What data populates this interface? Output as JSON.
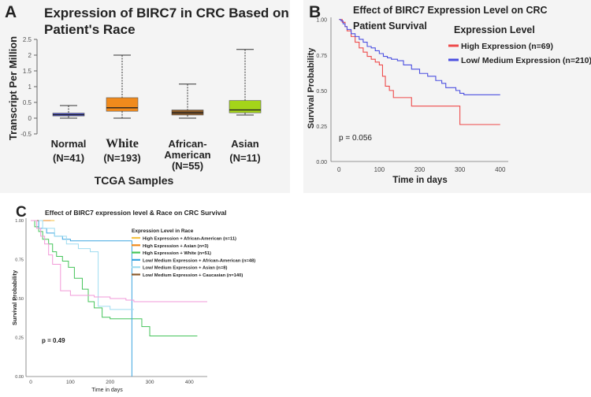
{
  "panel_labels": {
    "a": "A",
    "b": "B",
    "c": "C"
  },
  "colors": {
    "normal": "#4f54d9",
    "white": "#f08a1c",
    "african_american": "#8a5a28",
    "asian": "#a4d41a",
    "high": "#ee4b4b",
    "low": "#4b4fe0",
    "c_high_aa": "#f5c242",
    "c_high_asian": "#f08a1c",
    "c_high_white": "#45c45a",
    "c_low_aa": "#3da5e0",
    "c_low_asian": "#9fdcf0",
    "c_low_caucasian": "#8b5a2b",
    "c_pink": "#f29ad8"
  },
  "chart_data": [
    {
      "id": "A",
      "type": "box",
      "title_line1": "Expression of BIRC7 in CRC Based on",
      "title_line2": "Patient's Race",
      "ylabel": "Transcript Per Million",
      "xlabel": "TCGA Samples",
      "ylim": [
        -0.5,
        2.5
      ],
      "yticks": [
        "2.5",
        "2",
        "1.5",
        "1",
        "0.5",
        "0",
        "-0.5"
      ],
      "ytick_values": [
        2.5,
        2,
        1.5,
        1,
        0.5,
        0,
        -0.5
      ],
      "groups": [
        {
          "name_lines": [
            "Normal",
            "(N=41)"
          ],
          "min": 0.0,
          "q1": 0.07,
          "median": 0.11,
          "q3": 0.16,
          "max": 0.4,
          "color_key": "normal"
        },
        {
          "name_lines": [
            "White",
            "(N=193)"
          ],
          "min": 0.0,
          "q1": 0.22,
          "median": 0.33,
          "q3": 0.65,
          "max": 2.0,
          "color_key": "white"
        },
        {
          "name_lines": [
            "African-",
            "American",
            "(N=55)"
          ],
          "min": 0.0,
          "q1": 0.1,
          "median": 0.17,
          "q3": 0.26,
          "max": 1.08,
          "color_key": "african_american"
        },
        {
          "name_lines": [
            "Asian",
            "(N=11)"
          ],
          "min": 0.1,
          "q1": 0.17,
          "median": 0.26,
          "q3": 0.56,
          "max": 2.18,
          "color_key": "asian"
        }
      ]
    },
    {
      "id": "B",
      "type": "line",
      "title_line1": "Effect of BIRC7 Expression Level on CRC",
      "title_line2": "Patient Survival",
      "ylabel": "Survival Probability",
      "xlabel": "Time in days",
      "xlim": [
        -20,
        420
      ],
      "ylim": [
        0,
        1.0
      ],
      "xticks": [
        "0",
        "100",
        "200",
        "300",
        "400"
      ],
      "xtick_values": [
        0,
        100,
        200,
        300,
        400
      ],
      "yticks": [
        "1.00",
        "0.75",
        "0.50",
        "0.25",
        "0.00"
      ],
      "ytick_values": [
        1.0,
        0.75,
        0.5,
        0.25,
        0.0
      ],
      "legend_title": "Expression Level",
      "annotation": "p = 0.056",
      "series": [
        {
          "name": "High Expression (n=69)",
          "color_key": "high",
          "x": [
            0,
            8,
            15,
            20,
            30,
            40,
            50,
            60,
            70,
            80,
            90,
            100,
            108,
            115,
            125,
            135,
            180,
            300,
            400
          ],
          "y": [
            1.0,
            0.98,
            0.95,
            0.92,
            0.88,
            0.84,
            0.8,
            0.77,
            0.74,
            0.72,
            0.7,
            0.68,
            0.6,
            0.53,
            0.5,
            0.45,
            0.39,
            0.26,
            0.26
          ]
        },
        {
          "name": "Low/ Medium Expression (n=210)",
          "color_key": "low",
          "x": [
            0,
            5,
            10,
            15,
            20,
            30,
            40,
            50,
            60,
            70,
            80,
            90,
            100,
            110,
            120,
            130,
            145,
            160,
            180,
            200,
            220,
            240,
            255,
            265,
            290,
            300,
            310,
            400
          ],
          "y": [
            1.0,
            0.99,
            0.97,
            0.95,
            0.93,
            0.9,
            0.88,
            0.86,
            0.84,
            0.81,
            0.8,
            0.78,
            0.76,
            0.74,
            0.73,
            0.72,
            0.71,
            0.68,
            0.65,
            0.62,
            0.6,
            0.57,
            0.55,
            0.52,
            0.5,
            0.48,
            0.47,
            0.47
          ]
        }
      ]
    },
    {
      "id": "C",
      "type": "line",
      "title": "Effect of BIRC7 expression level & Race on CRC Survival",
      "ylabel": "Survival Probability",
      "xlabel": "Time in days",
      "xlim": [
        -12,
        445
      ],
      "ylim": [
        0,
        1.0
      ],
      "xticks": [
        "0",
        "100",
        "200",
        "300",
        "400"
      ],
      "xtick_values": [
        0,
        100,
        200,
        300,
        400
      ],
      "yticks": [
        "1.00",
        "0.75",
        "0.50",
        "0.25",
        "0.00"
      ],
      "ytick_values": [
        1.0,
        0.75,
        0.5,
        0.25,
        0.0
      ],
      "legend_title": "Expression Level in Race",
      "annotation": "p = 0.49",
      "series": [
        {
          "name": "High Expression + African-American (n=11)",
          "color_key": "c_high_aa",
          "x": [
            0,
            60
          ],
          "y": [
            1.0,
            1.0
          ]
        },
        {
          "name": "High Expression + Asian (n=3)",
          "color_key": "c_high_asian",
          "x": [
            0,
            50
          ],
          "y": [
            1.0,
            1.0
          ]
        },
        {
          "name": "High Expression + White (n=51)",
          "color_key": "c_high_white",
          "x": [
            0,
            10,
            20,
            30,
            45,
            55,
            65,
            80,
            95,
            110,
            130,
            145,
            160,
            180,
            200,
            280,
            300,
            350,
            400,
            420
          ],
          "y": [
            1.0,
            0.96,
            0.93,
            0.88,
            0.85,
            0.8,
            0.77,
            0.74,
            0.7,
            0.63,
            0.56,
            0.48,
            0.44,
            0.38,
            0.37,
            0.32,
            0.26,
            0.26,
            0.26,
            0.26
          ]
        },
        {
          "name": "Low/ Medium Expression + African-American (n=48)",
          "color_key": "c_low_aa",
          "x": [
            0,
            20,
            40,
            60,
            80,
            100,
            250,
            255
          ],
          "y": [
            1.0,
            0.95,
            0.92,
            0.9,
            0.88,
            0.87,
            0.87,
            0.0
          ]
        },
        {
          "name": "Low/ Medium Expression + Asian (n=8)",
          "color_key": "c_low_asian",
          "x": [
            0,
            30,
            60,
            90,
            120,
            150,
            170,
            200,
            260
          ],
          "y": [
            1.0,
            0.95,
            0.9,
            0.85,
            0.82,
            0.8,
            0.45,
            0.43,
            0.43
          ]
        },
        {
          "name": "Low/ Medium Expression + Caucasian (n=140)",
          "color_key": "c_low_caucasian",
          "x": [
            0,
            20
          ],
          "y": [
            1.0,
            1.0
          ]
        },
        {
          "name": "",
          "color_key": "c_pink",
          "x": [
            0,
            15,
            25,
            35,
            45,
            55,
            75,
            100,
            120,
            140,
            160,
            180,
            200,
            220,
            240,
            260,
            300,
            350,
            445
          ],
          "y": [
            1.0,
            0.95,
            0.9,
            0.85,
            0.78,
            0.72,
            0.55,
            0.52,
            0.52,
            0.52,
            0.51,
            0.51,
            0.5,
            0.5,
            0.49,
            0.48,
            0.48,
            0.48,
            0.48
          ]
        }
      ]
    }
  ]
}
